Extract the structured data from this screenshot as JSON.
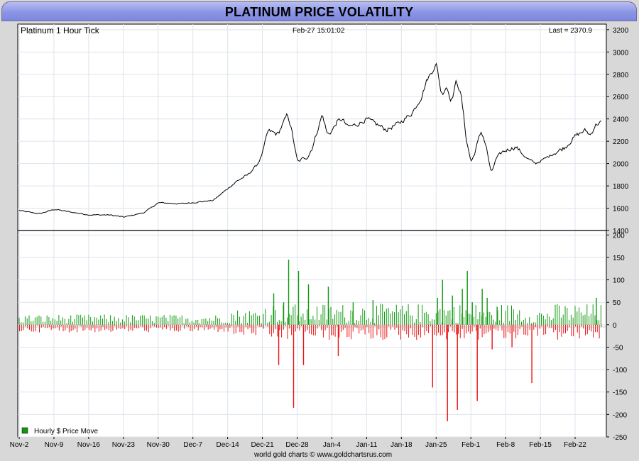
{
  "page_title": "PLATINUM PRICE VOLATILITY",
  "chart_data": [
    {
      "type": "line",
      "title": "Platinum 1 Hour Tick",
      "timestamp": "Feb-27  15:01:02",
      "last_label": "Last = 2370.9",
      "xlabel": "",
      "ylabel": "",
      "ylim": [
        1400,
        3250
      ],
      "yticks": [
        1400,
        1600,
        1800,
        2000,
        2200,
        2400,
        2600,
        2800,
        3000,
        3200
      ],
      "grid": true,
      "x_tick_labels": [
        "Nov-2",
        "Nov-9",
        "Nov-16",
        "Nov-23",
        "Nov-30",
        "Dec-7",
        "Dec-14",
        "Dec-21",
        "Dec-28",
        "Jan-4",
        "Jan-11",
        "Jan-18",
        "Jan-25",
        "Feb-1",
        "Feb-8",
        "Feb-15",
        "Feb-22"
      ],
      "series": [
        {
          "x": [
            "Nov-2",
            "Nov-3",
            "Nov-6",
            "Nov-9",
            "Nov-13",
            "Nov-16",
            "Nov-20",
            "Nov-23",
            "Nov-27",
            "Nov-30",
            "Dec-4",
            "Dec-7",
            "Dec-11",
            "Dec-14",
            "Dec-16",
            "Dec-18",
            "Dec-20",
            "Dec-21",
            "Dec-22",
            "Dec-24",
            "Dec-26",
            "Dec-27",
            "Dec-28",
            "Dec-29",
            "Dec-30",
            "Dec-31",
            "Jan-1",
            "Jan-2",
            "Jan-3",
            "Jan-4",
            "Jan-5",
            "Jan-6",
            "Jan-7",
            "Jan-9",
            "Jan-11",
            "Jan-13",
            "Jan-15",
            "Jan-18",
            "Jan-20",
            "Jan-22",
            "Jan-23",
            "Jan-24",
            "Jan-25",
            "Jan-26",
            "Jan-27",
            "Jan-28",
            "Jan-29",
            "Jan-30",
            "Jan-31",
            "Feb-1",
            "Feb-2",
            "Feb-3",
            "Feb-4",
            "Feb-5",
            "Feb-6",
            "Feb-7",
            "Feb-8",
            "Feb-10",
            "Feb-12",
            "Feb-14",
            "Feb-16",
            "Feb-18",
            "Feb-20",
            "Feb-22",
            "Feb-24",
            "Feb-25",
            "Feb-26",
            "Feb-27"
          ],
          "values": [
            1580,
            1570,
            1550,
            1590,
            1560,
            1540,
            1540,
            1520,
            1560,
            1650,
            1640,
            1650,
            1670,
            1780,
            1850,
            1900,
            2000,
            2100,
            2300,
            2260,
            2450,
            2250,
            2000,
            2050,
            2050,
            2150,
            2300,
            2450,
            2250,
            2300,
            2380,
            2400,
            2330,
            2350,
            2400,
            2350,
            2300,
            2380,
            2450,
            2600,
            2750,
            2820,
            2900,
            2600,
            2700,
            2550,
            2750,
            2600,
            2200,
            2000,
            2150,
            2300,
            2150,
            1900,
            2050,
            2100,
            2120,
            2150,
            2050,
            2000,
            2050,
            2100,
            2150,
            2250,
            2300,
            2250,
            2350,
            2370
          ]
        }
      ]
    },
    {
      "type": "bar",
      "title": "",
      "legend": [
        "Hourly $ Price Move"
      ],
      "legend_position": "bottom-left",
      "ylim": [
        -250,
        210
      ],
      "yticks": [
        -250,
        -200,
        -150,
        -100,
        -50,
        0,
        50,
        100,
        150,
        200
      ],
      "grid": true,
      "x_tick_labels": [
        "Nov-2",
        "Nov-9",
        "Nov-16",
        "Nov-23",
        "Nov-30",
        "Dec-7",
        "Dec-14",
        "Dec-21",
        "Dec-28",
        "Jan-4",
        "Jan-11",
        "Jan-18",
        "Jan-25",
        "Feb-1",
        "Feb-8",
        "Feb-15",
        "Feb-22"
      ],
      "series": [
        {
          "name": "Hourly $ Price Move",
          "x": [
            "Dec-23",
            "Dec-24",
            "Dec-25",
            "Dec-26",
            "Dec-27",
            "Dec-28",
            "Dec-29",
            "Dec-30",
            "Jan-3",
            "Jan-5",
            "Jan-8",
            "Jan-12",
            "Jan-24",
            "Jan-25",
            "Jan-26",
            "Jan-27",
            "Jan-28",
            "Jan-29",
            "Jan-30",
            "Jan-31",
            "Feb-1",
            "Feb-2",
            "Feb-3",
            "Feb-4",
            "Feb-5",
            "Feb-6",
            "Feb-9",
            "Feb-13",
            "Feb-26"
          ],
          "values": [
            70,
            -90,
            50,
            145,
            -185,
            120,
            -90,
            90,
            85,
            -70,
            50,
            55,
            -140,
            60,
            100,
            -215,
            65,
            -190,
            80,
            120,
            50,
            -170,
            80,
            60,
            -55,
            40,
            -50,
            -130,
            60
          ]
        }
      ],
      "noise_level": {
        "positive": 20,
        "negative": -15
      }
    }
  ],
  "legend": {
    "label": "Hourly $ Price Move",
    "color": "#119911"
  },
  "colors": {
    "price_line": "#000000",
    "up_bar": "#119911",
    "down_bar": "#ee1111",
    "grid": "#dde4ec",
    "title_bar": "#8b95e6"
  },
  "footer": "world gold charts © www.goldchartsrus.com"
}
